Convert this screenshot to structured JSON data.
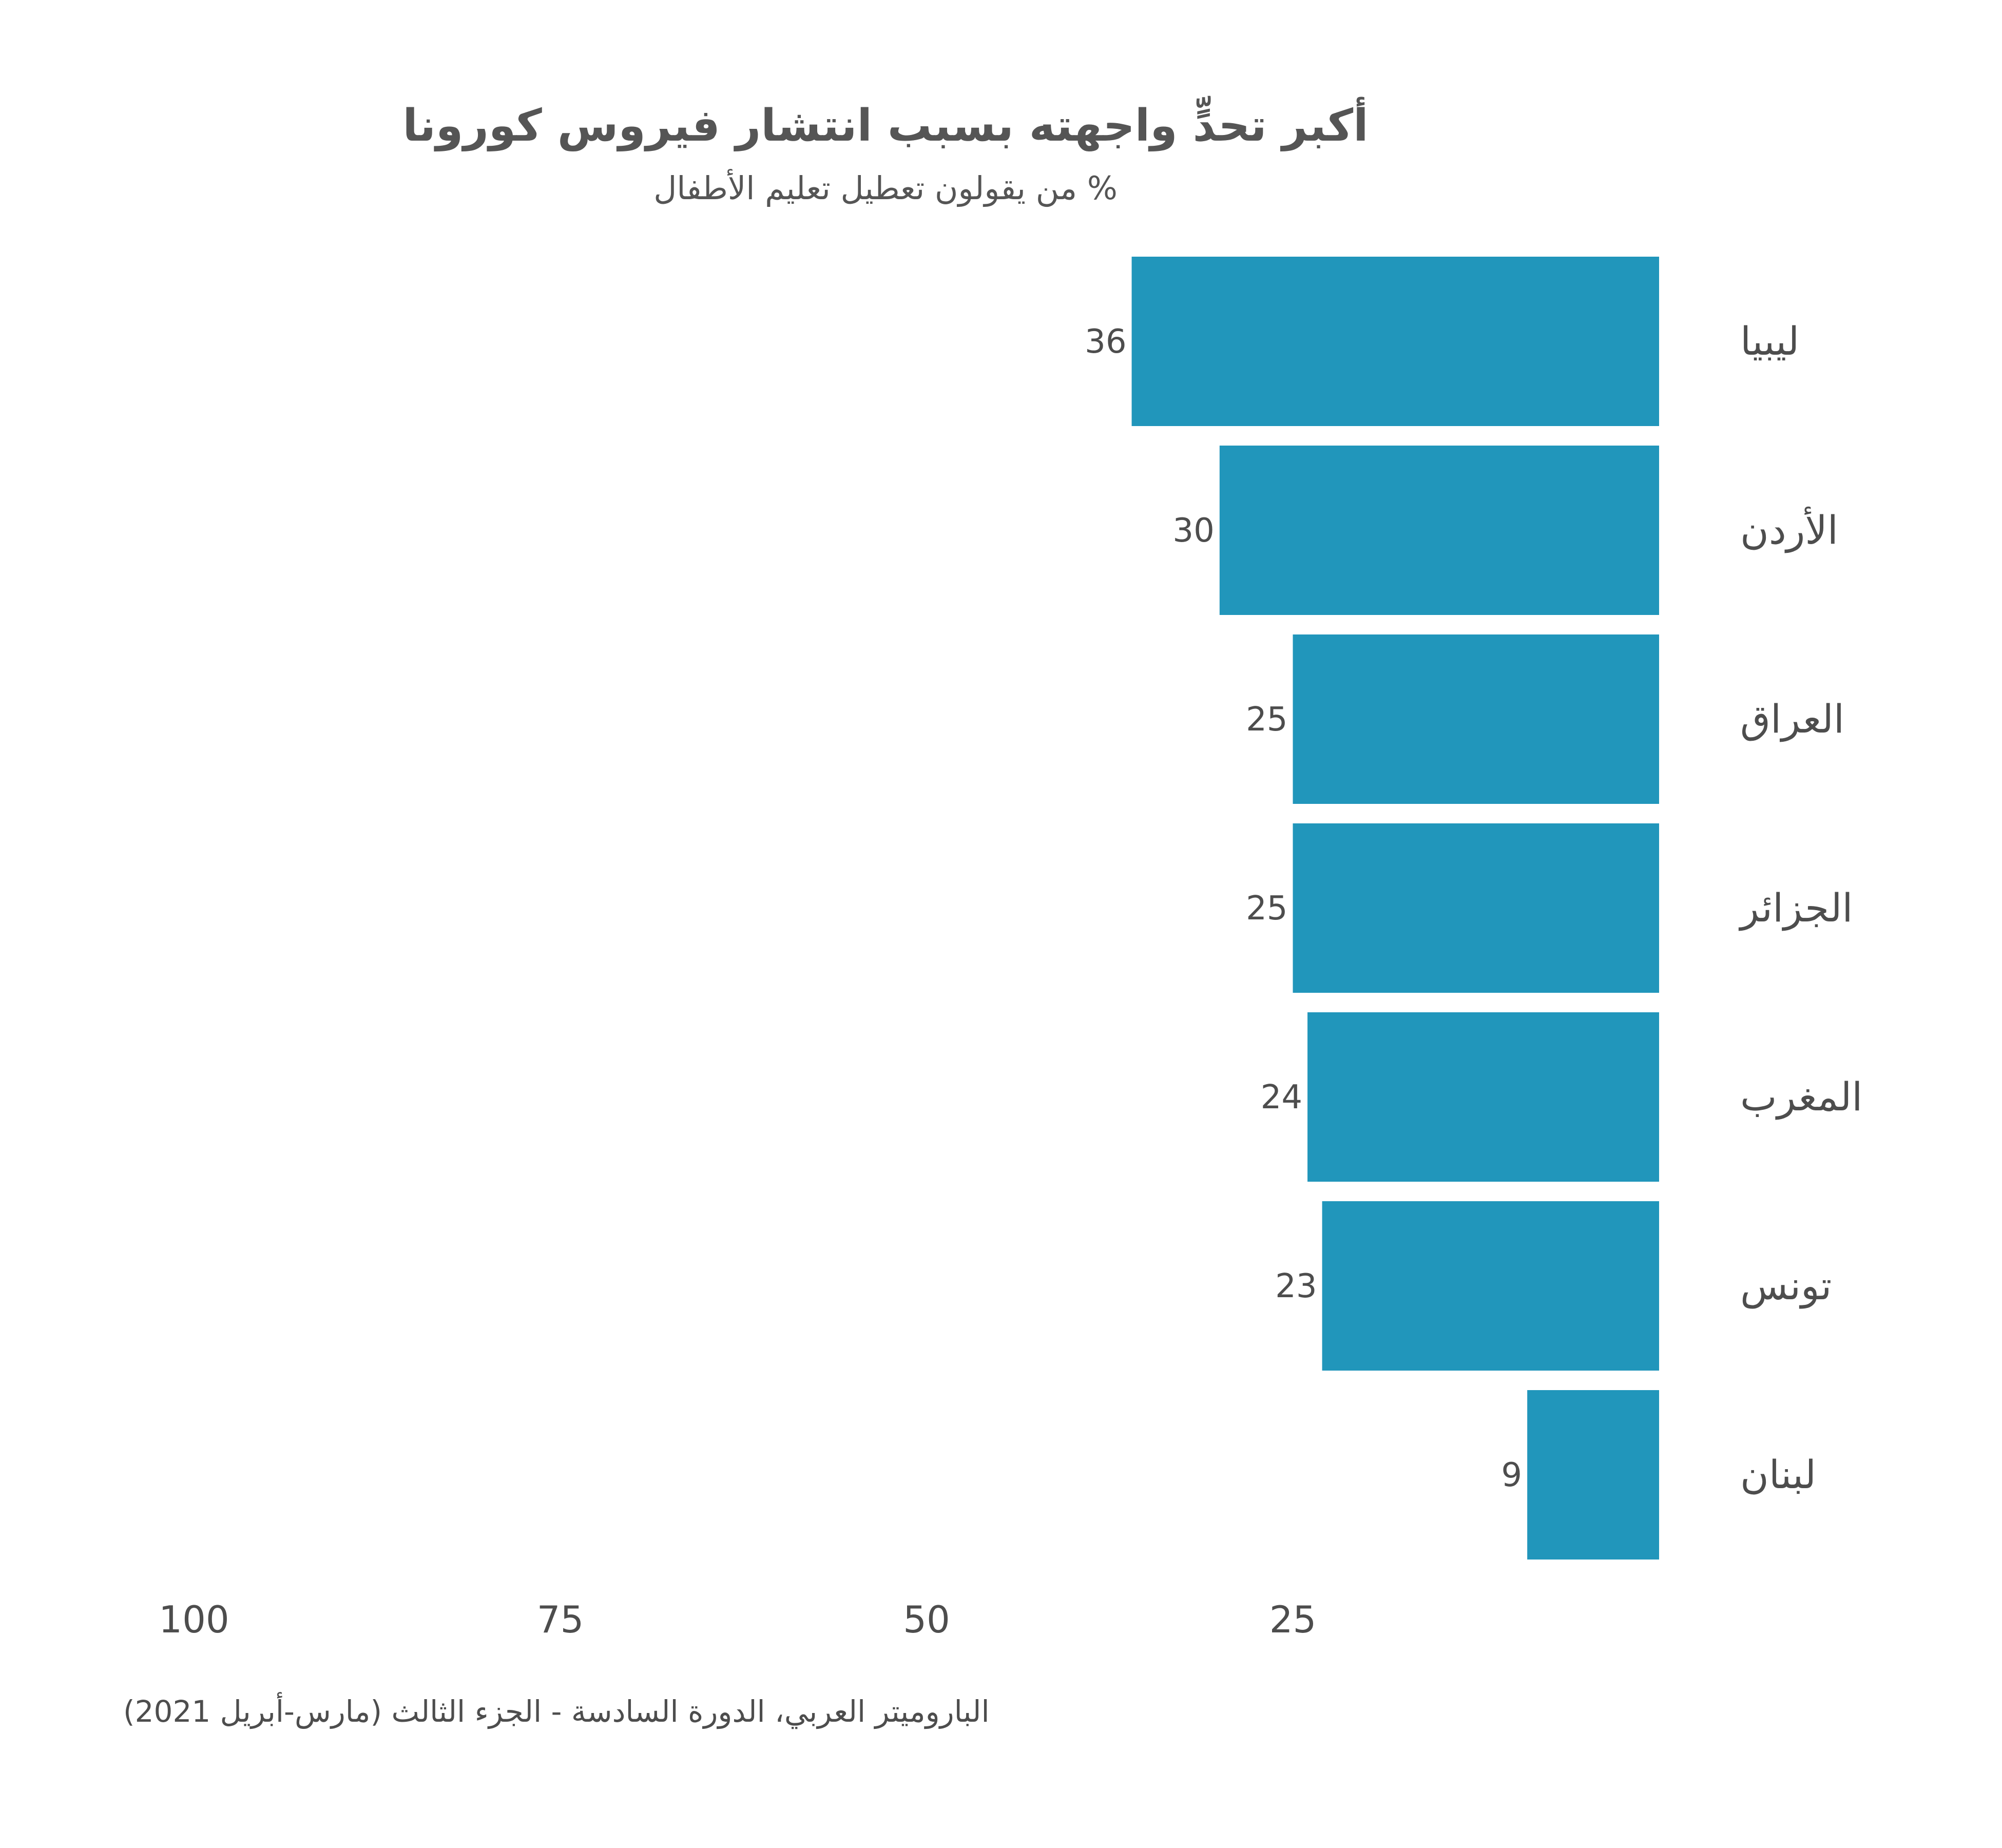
{
  "chart_data": {
    "type": "bar",
    "orientation": "horizontal",
    "title": "أكبر تحدٍّ واجهته بسبب انتشار فيروس كورونا",
    "subtitle": "% من يقولون تعطيل تعليم الأطفال",
    "categories": [
      "ليبيا",
      "الأردن",
      "العراق",
      "الجزائر",
      "المغرب",
      "تونس",
      "لبنان"
    ],
    "values": [
      36,
      30,
      25,
      25,
      24,
      23,
      9
    ],
    "x_ticks": [
      100,
      75,
      50,
      25
    ],
    "xlim": [
      0,
      100
    ],
    "x_reversed": true,
    "grid": false,
    "bar_color": "#2196BB",
    "text_color": "#4d4d4d"
  },
  "source": "الباروميتر العربي، الدورة السادسة - الجزء الثالث (مارس-أبريل 2021)"
}
